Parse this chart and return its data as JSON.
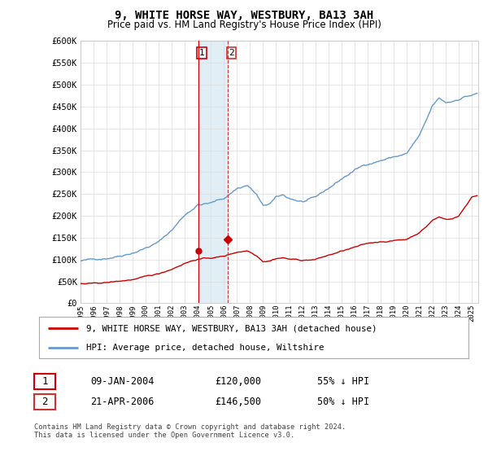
{
  "title": "9, WHITE HORSE WAY, WESTBURY, BA13 3AH",
  "subtitle": "Price paid vs. HM Land Registry's House Price Index (HPI)",
  "footnote": "Contains HM Land Registry data © Crown copyright and database right 2024.\nThis data is licensed under the Open Government Licence v3.0.",
  "legend_line1": "9, WHITE HORSE WAY, WESTBURY, BA13 3AH (detached house)",
  "legend_line2": "HPI: Average price, detached house, Wiltshire",
  "sale1_label": "1",
  "sale1_date": "09-JAN-2004",
  "sale1_price": "£120,000",
  "sale1_hpi": "55% ↓ HPI",
  "sale2_label": "2",
  "sale2_date": "21-APR-2006",
  "sale2_price": "£146,500",
  "sale2_hpi": "50% ↓ HPI",
  "ylim": [
    0,
    600000
  ],
  "yticks": [
    0,
    50000,
    100000,
    150000,
    200000,
    250000,
    300000,
    350000,
    400000,
    450000,
    500000,
    550000,
    600000
  ],
  "red_color": "#cc0000",
  "blue_color": "#6699cc",
  "vline1_color": "#cc0000",
  "vline2_color": "#cc3333",
  "background_color": "#ffffff",
  "grid_color": "#dddddd",
  "sale1_x": 2004.03,
  "sale2_x": 2006.31,
  "sale1_y": 120000,
  "sale2_y": 146500,
  "xlim_left": 1995.0,
  "xlim_right": 2025.5
}
